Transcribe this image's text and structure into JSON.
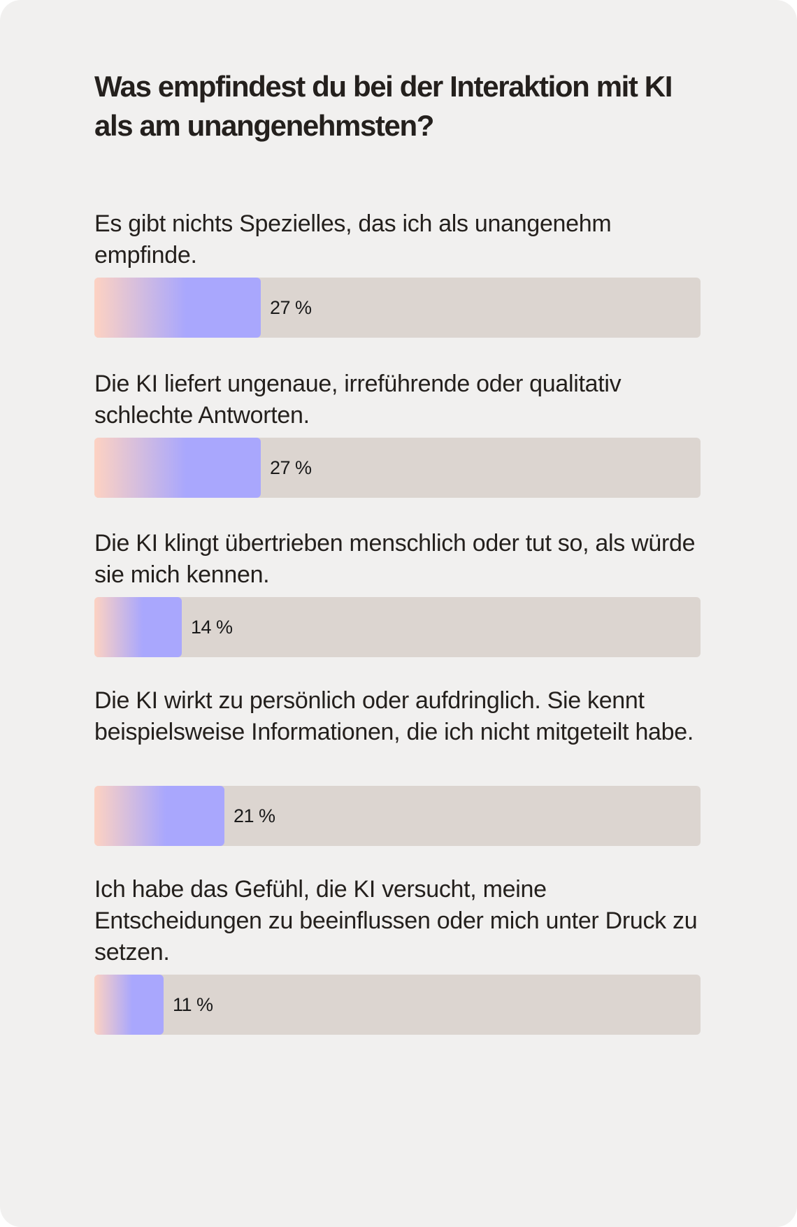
{
  "colors": {
    "background": "#f1f0ef",
    "track": "#dcd5d0",
    "bar_gradient_start": "#fdd2c2",
    "bar_gradient_end": "#a9a7fd"
  },
  "chart_data": {
    "type": "bar",
    "orientation": "horizontal",
    "title": "Was empfindest du bei der Interaktion mit KI als am unangenehmsten?",
    "unit": "%",
    "xlim": [
      0,
      100
    ],
    "categories": [
      "Es gibt nichts Spezielles, das ich als unangenehm empfinde.",
      "Die KI liefert ungenaue, irreführende oder qualitativ schlechte Antworten.",
      "Die KI klingt übertrieben menschlich oder tut so, als würde sie mich kennen.",
      "Die KI wirkt zu persönlich oder aufdringlich. Sie kennt beispielsweise Informationen, die ich nicht mitgeteilt habe.",
      "Ich habe das Gefühl, die KI versucht, meine Entscheidungen zu beeinflussen oder mich unter Druck zu setzen."
    ],
    "values": [
      27,
      27,
      14,
      21,
      11
    ],
    "value_labels": [
      "27 %",
      "27 %",
      "14 %",
      "21 %",
      "11 %"
    ]
  }
}
